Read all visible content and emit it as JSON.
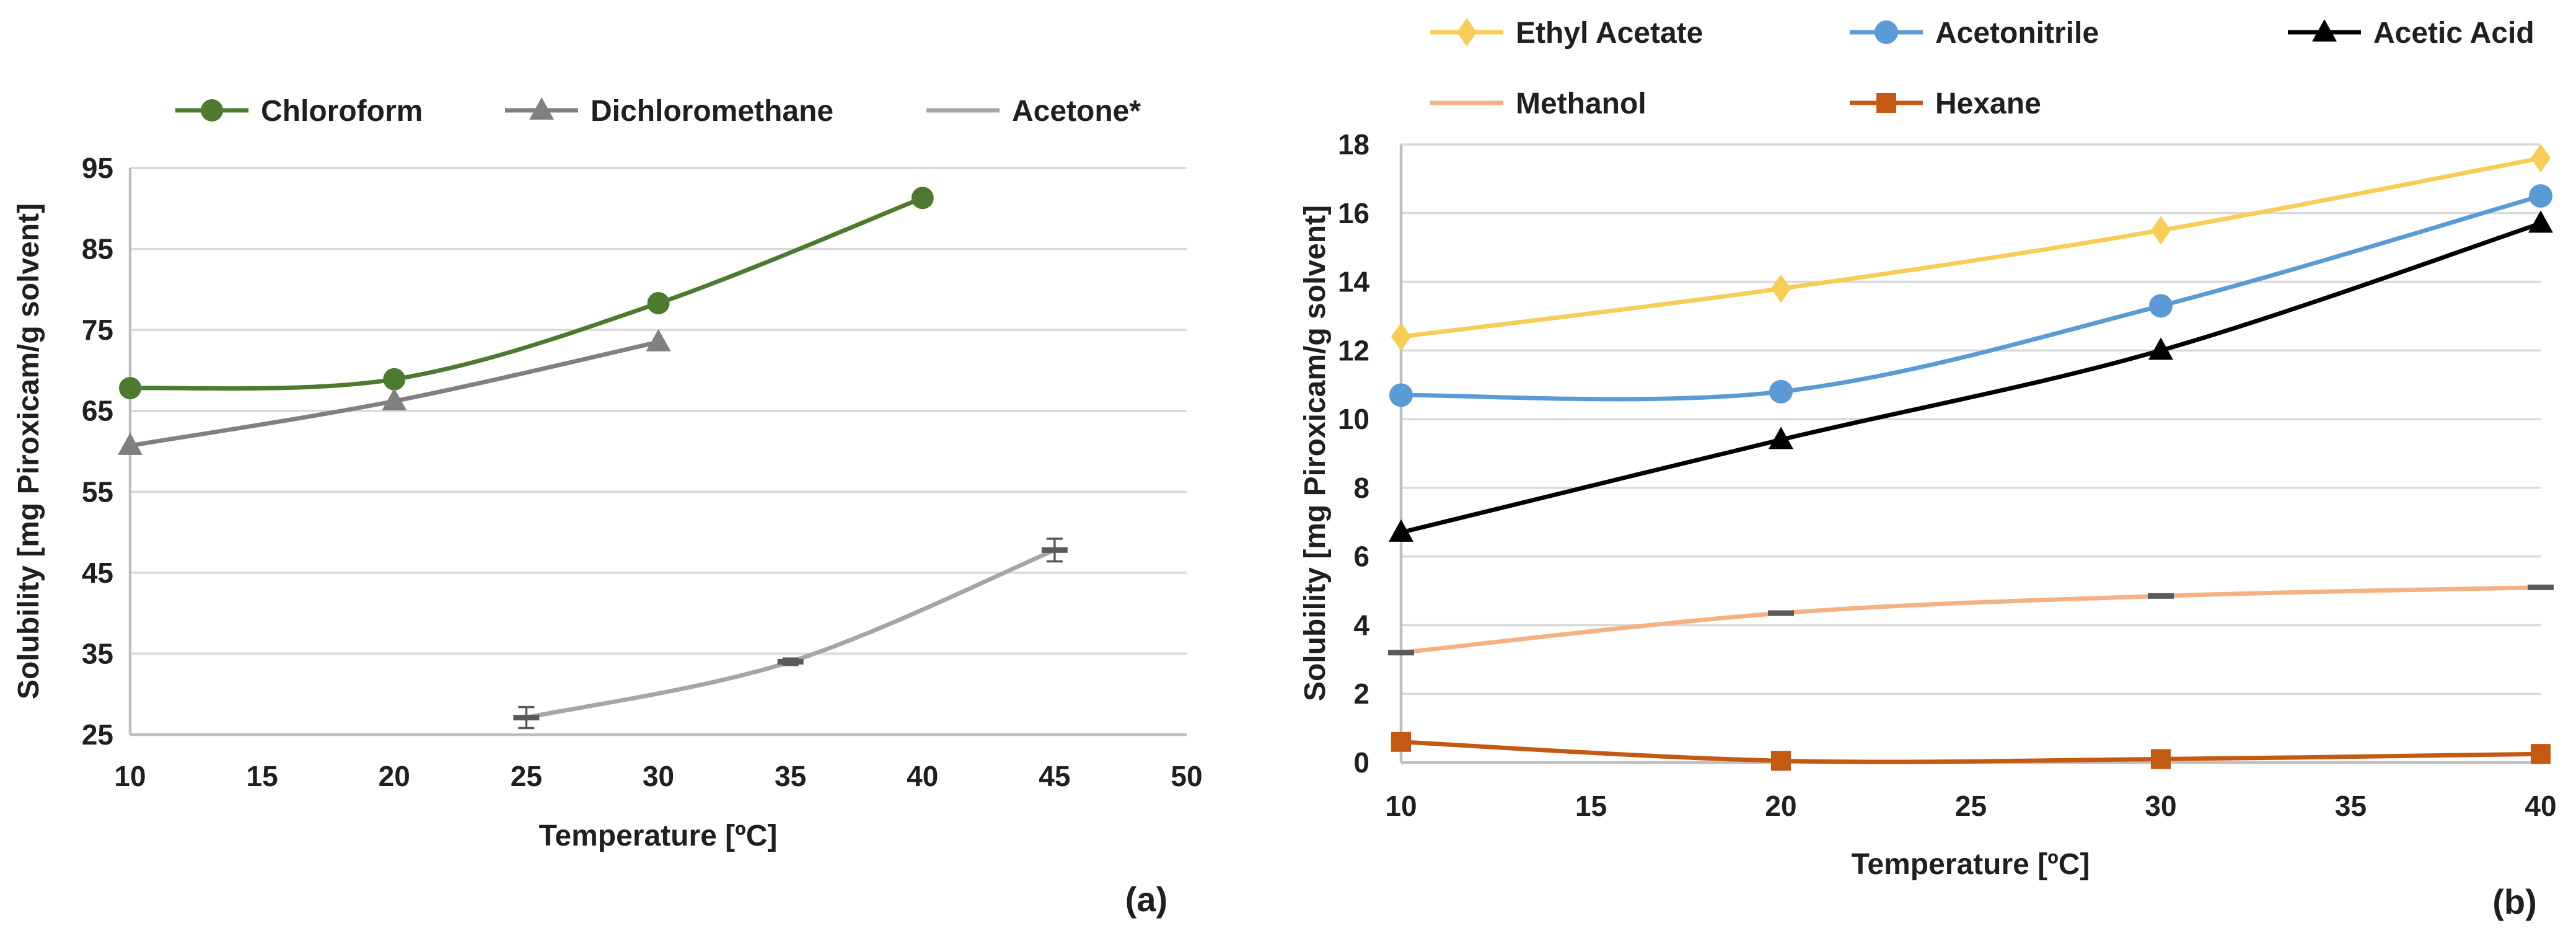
{
  "figure": {
    "background": "#ffffff",
    "text_color": "#1f1f1f",
    "grid_color": "#d9d9d9",
    "axis_color": "#bfbfbf",
    "error_bar_color": "#595959"
  },
  "chart_data": [
    {
      "id": "a",
      "type": "line",
      "panel_label": "(a)",
      "xlabel": "Temperature [ºC]",
      "ylabel": "Solubility  [mg Piroxicam/g solvent]",
      "xlim": [
        10,
        50
      ],
      "ylim": [
        25,
        95
      ],
      "xticks": [
        10,
        15,
        20,
        25,
        30,
        35,
        40,
        45,
        50
      ],
      "yticks": [
        25,
        35,
        45,
        55,
        65,
        75,
        85,
        95
      ],
      "grid": "horizontal",
      "legend_position": "top",
      "series": [
        {
          "name": "Chloroform",
          "color": "#4d7a2e",
          "marker": "circle",
          "x": [
            10,
            20,
            30,
            40
          ],
          "values": [
            67.8,
            68.9,
            78.3,
            91.3
          ]
        },
        {
          "name": "Dichloromethane",
          "color": "#808080",
          "marker": "triangle",
          "x": [
            10,
            20,
            30
          ],
          "values": [
            60.7,
            66.2,
            73.5
          ]
        },
        {
          "name": "Acetone*",
          "color": "#a6a6a6",
          "marker": "dash",
          "x": [
            25,
            35,
            45
          ],
          "values": [
            27.1,
            34.0,
            47.8
          ],
          "yerr": [
            1.3,
            0.4,
            1.4
          ]
        }
      ],
      "legend_rows": [
        [
          "Chloroform",
          "Dichloromethane",
          "Acetone*"
        ]
      ]
    },
    {
      "id": "b",
      "type": "line",
      "panel_label": "(b)",
      "xlabel": "Temperature [ºC]",
      "ylabel": "Solubility  [mg Piroxicam/g solvent]",
      "xlim": [
        10,
        40
      ],
      "ylim": [
        0,
        18
      ],
      "xticks": [
        10,
        15,
        20,
        25,
        30,
        35,
        40
      ],
      "yticks": [
        0,
        2,
        4,
        6,
        8,
        10,
        12,
        14,
        16,
        18
      ],
      "grid": "horizontal",
      "legend_position": "top",
      "series": [
        {
          "name": "Ethyl Acetate",
          "color": "#f7cd55",
          "marker": "diamond",
          "x": [
            10,
            20,
            30,
            40
          ],
          "values": [
            12.4,
            13.8,
            15.5,
            17.6
          ]
        },
        {
          "name": "Acetonitrile",
          "color": "#5b9bd5",
          "marker": "circle",
          "x": [
            10,
            20,
            30,
            40
          ],
          "values": [
            10.7,
            10.8,
            13.3,
            16.5
          ]
        },
        {
          "name": "Acetic Acid",
          "color": "#000000",
          "marker": "triangle",
          "x": [
            10,
            20,
            30,
            40
          ],
          "values": [
            6.7,
            9.4,
            12.0,
            15.7
          ]
        },
        {
          "name": "Methanol",
          "color": "#f4b183",
          "marker": "dash",
          "x": [
            10,
            20,
            30,
            40
          ],
          "values": [
            3.2,
            4.35,
            4.85,
            5.1
          ]
        },
        {
          "name": "Hexane",
          "color": "#c45911",
          "marker": "square",
          "x": [
            10,
            20,
            30,
            40
          ],
          "values": [
            0.6,
            0.05,
            0.1,
            0.25
          ]
        }
      ],
      "legend_rows": [
        [
          "Ethyl Acetate",
          "Acetonitrile",
          "Acetic Acid"
        ],
        [
          "Methanol",
          "Hexane"
        ]
      ]
    }
  ]
}
